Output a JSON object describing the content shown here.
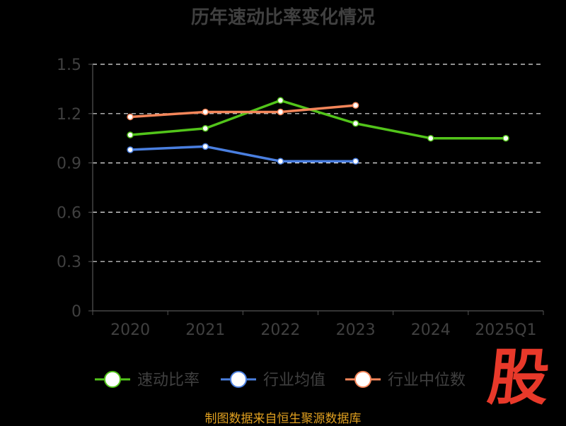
{
  "chart_data": {
    "type": "line",
    "title": "历年速动比率变化情况",
    "categories": [
      "2020",
      "2021",
      "2022",
      "2023",
      "2024",
      "2025Q1"
    ],
    "y_ticks": [
      "0",
      "0.3",
      "0.6",
      "0.9",
      "1.2",
      "1.5"
    ],
    "ylim": [
      0,
      1.5
    ],
    "grid": true,
    "legend_position": "bottom",
    "series": [
      {
        "name": "速动比率",
        "color": "#52c41a",
        "values": [
          1.07,
          1.11,
          1.28,
          1.14,
          1.05,
          1.05
        ]
      },
      {
        "name": "行业均值",
        "color": "#4a7fe0",
        "values": [
          0.98,
          1.0,
          0.91,
          0.91,
          null,
          null
        ]
      },
      {
        "name": "行业中位数",
        "color": "#f4865a",
        "values": [
          1.18,
          1.21,
          1.21,
          1.25,
          null,
          null
        ]
      }
    ]
  },
  "watermark": "股",
  "source_text": "制图数据来自恒生聚源数据库"
}
